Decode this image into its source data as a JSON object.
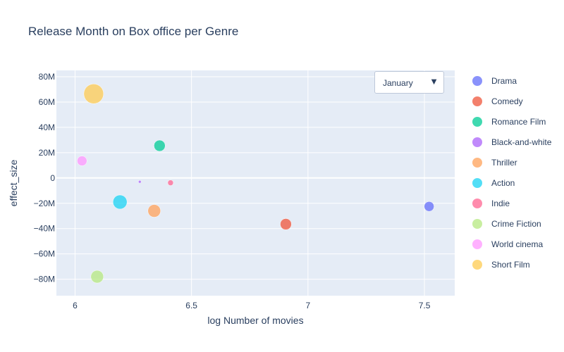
{
  "chart_data": {
    "type": "scatter",
    "title": "Release Month on Box office per Genre",
    "xlabel": "log Number of movies",
    "ylabel": "effect_size",
    "xlim": [
      5.92,
      7.63
    ],
    "ylim": [
      -93000000,
      85000000
    ],
    "x_ticks": [
      6,
      6.5,
      7,
      7.5
    ],
    "x_tick_labels": [
      "6",
      "6.5",
      "7",
      "7.5"
    ],
    "y_ticks": [
      80000000,
      60000000,
      40000000,
      20000000,
      0,
      -20000000,
      -40000000,
      -60000000,
      -80000000
    ],
    "y_tick_labels": [
      "80M",
      "60M",
      "40M",
      "20M",
      "0",
      "−20M",
      "−40M",
      "−60M",
      "−80M"
    ],
    "grid": true,
    "legend_position": "right",
    "series": [
      {
        "name": "Drama",
        "color": "#636efa",
        "x": 7.52,
        "y": -22500000,
        "size": 7
      },
      {
        "name": "Comedy",
        "color": "#ef553b",
        "x": 6.905,
        "y": -36500000,
        "size": 8
      },
      {
        "name": "Romance Film",
        "color": "#00cc96",
        "x": 6.363,
        "y": 25500000,
        "size": 8
      },
      {
        "name": "Black-and-white",
        "color": "#ab63fa",
        "x": 6.278,
        "y": -3000000,
        "size": 2
      },
      {
        "name": "Thriller",
        "color": "#ffa15a",
        "x": 6.34,
        "y": -26000000,
        "size": 9
      },
      {
        "name": "Action",
        "color": "#19d3f3",
        "x": 6.193,
        "y": -19000000,
        "size": 10
      },
      {
        "name": "Indie",
        "color": "#ff6692",
        "x": 6.41,
        "y": -3800000,
        "size": 4
      },
      {
        "name": "Crime Fiction",
        "color": "#b6e880",
        "x": 6.095,
        "y": -78000000,
        "size": 9
      },
      {
        "name": "World cinema",
        "color": "#ff97ff",
        "x": 6.03,
        "y": 13500000,
        "size": 7
      },
      {
        "name": "Short Film",
        "color": "#fecb52",
        "x": 6.08,
        "y": 66500000,
        "size": 14
      }
    ]
  },
  "dropdown": {
    "selected": "January",
    "arrow_icon": "triangle-down-icon"
  }
}
